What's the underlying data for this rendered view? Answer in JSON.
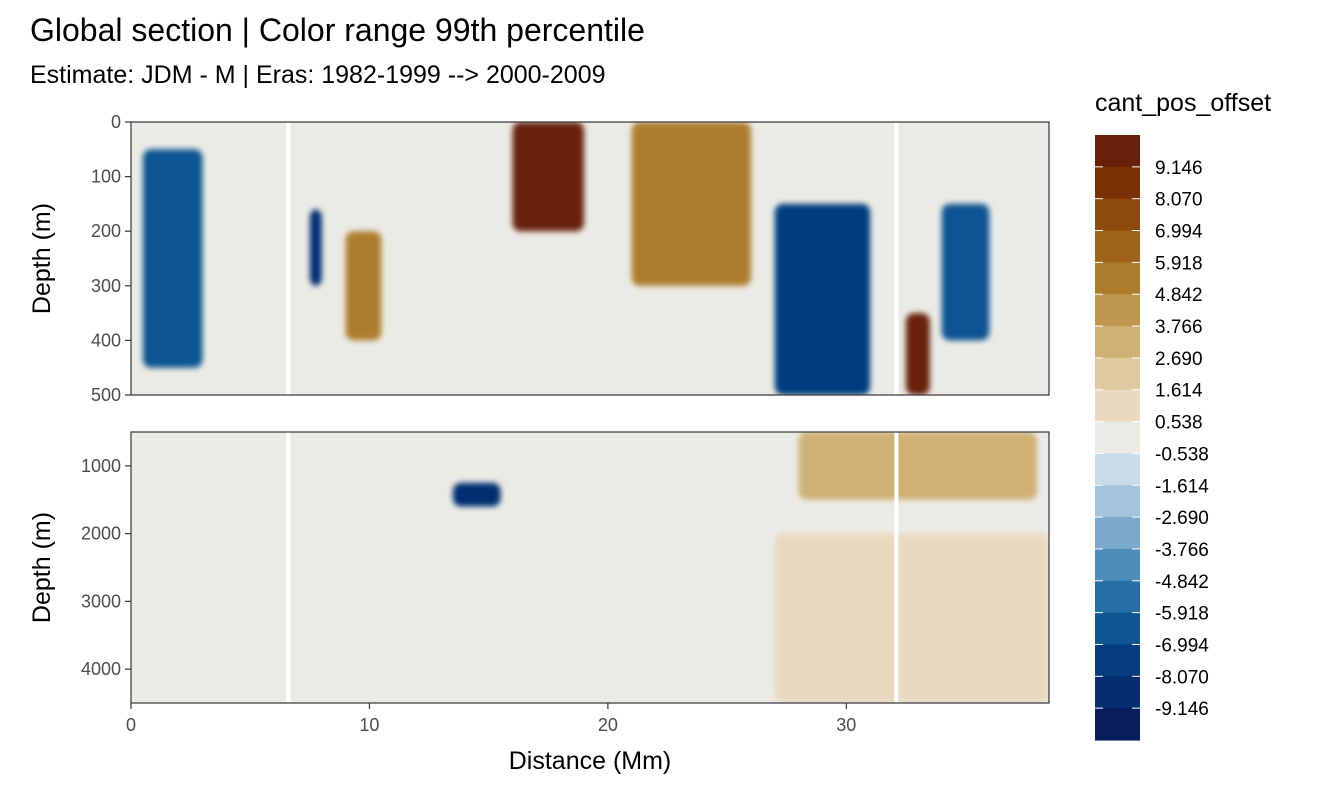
{
  "title": "Global section | Color range 99th percentile",
  "subtitle": "Estimate: JDM - M | Eras: 1982-1999 --> 2000-2009",
  "chart_data": {
    "type": "heatmap",
    "title": "Global section | Color range 99th percentile",
    "subtitle": "Estimate: JDM - M | Eras: 1982-1999 --> 2000-2009",
    "xlabel": "Distance (Mm)",
    "xlim": [
      0,
      38.5
    ],
    "x_ticks": [
      0,
      10,
      20,
      30
    ],
    "panels": [
      {
        "name": "upper",
        "ylabel": "Depth (m)",
        "ylim": [
          0,
          500
        ],
        "y_reversed": true,
        "y_ticks": [
          0,
          100,
          200,
          300,
          400,
          500
        ]
      },
      {
        "name": "lower",
        "ylabel": "Depth (m)",
        "ylim": [
          500,
          4500
        ],
        "y_reversed": true,
        "y_ticks": [
          1000,
          2000,
          3000,
          4000
        ]
      }
    ],
    "station_gaps_x": [
      6.6,
      32.1
    ],
    "legend": {
      "title": "cant_pos_offset",
      "placement": "right",
      "labels": [
        "9.146",
        "8.070",
        "6.994",
        "5.918",
        "4.842",
        "3.766",
        "2.690",
        "1.614",
        "0.538",
        "-0.538",
        "-1.614",
        "-2.690",
        "-3.766",
        "-4.842",
        "-5.918",
        "-6.994",
        "-8.070",
        "-9.146"
      ],
      "colors": [
        "#67200a",
        "#7b3106",
        "#8c4a0c",
        "#9d6318",
        "#ad7d2e",
        "#bf9850",
        "#cfb175",
        "#dfc99e",
        "#ead9bf",
        "#ebebe6",
        "#c7dbe8",
        "#a3c4da",
        "#7aa9cb",
        "#4d8bb9",
        "#256fa5",
        "#0f5592",
        "#063d7e",
        "#062d70",
        "#081d5e"
      ]
    },
    "field_summary": {
      "upper": [
        {
          "x": [
            0.5,
            3
          ],
          "depth": [
            50,
            450
          ],
          "level": -6
        },
        {
          "x": [
            7.5,
            8
          ],
          "depth": [
            160,
            300
          ],
          "level": -8
        },
        {
          "x": [
            9,
            10.5
          ],
          "depth": [
            200,
            400
          ],
          "level": 5
        },
        {
          "x": [
            16,
            19
          ],
          "depth": [
            0,
            200
          ],
          "level": 9
        },
        {
          "x": [
            21,
            26
          ],
          "depth": [
            0,
            300
          ],
          "level": 5
        },
        {
          "x": [
            27,
            31
          ],
          "depth": [
            150,
            500
          ],
          "level": -7
        },
        {
          "x": [
            32.5,
            33.5
          ],
          "depth": [
            350,
            500
          ],
          "level": 9
        },
        {
          "x": [
            34,
            36
          ],
          "depth": [
            150,
            400
          ],
          "level": -6
        }
      ],
      "lower": [
        {
          "x": [
            13.5,
            15.5
          ],
          "depth": [
            1250,
            1600
          ],
          "level": -8
        },
        {
          "x": [
            28,
            38
          ],
          "depth": [
            500,
            1500
          ],
          "level": 3
        },
        {
          "x": [
            27,
            38.5
          ],
          "depth": [
            2000,
            4500
          ],
          "level": 1
        },
        {
          "x": [
            0,
            12
          ],
          "depth": [
            1500,
            4500
          ],
          "level": 0
        }
      ]
    },
    "grid": true
  }
}
